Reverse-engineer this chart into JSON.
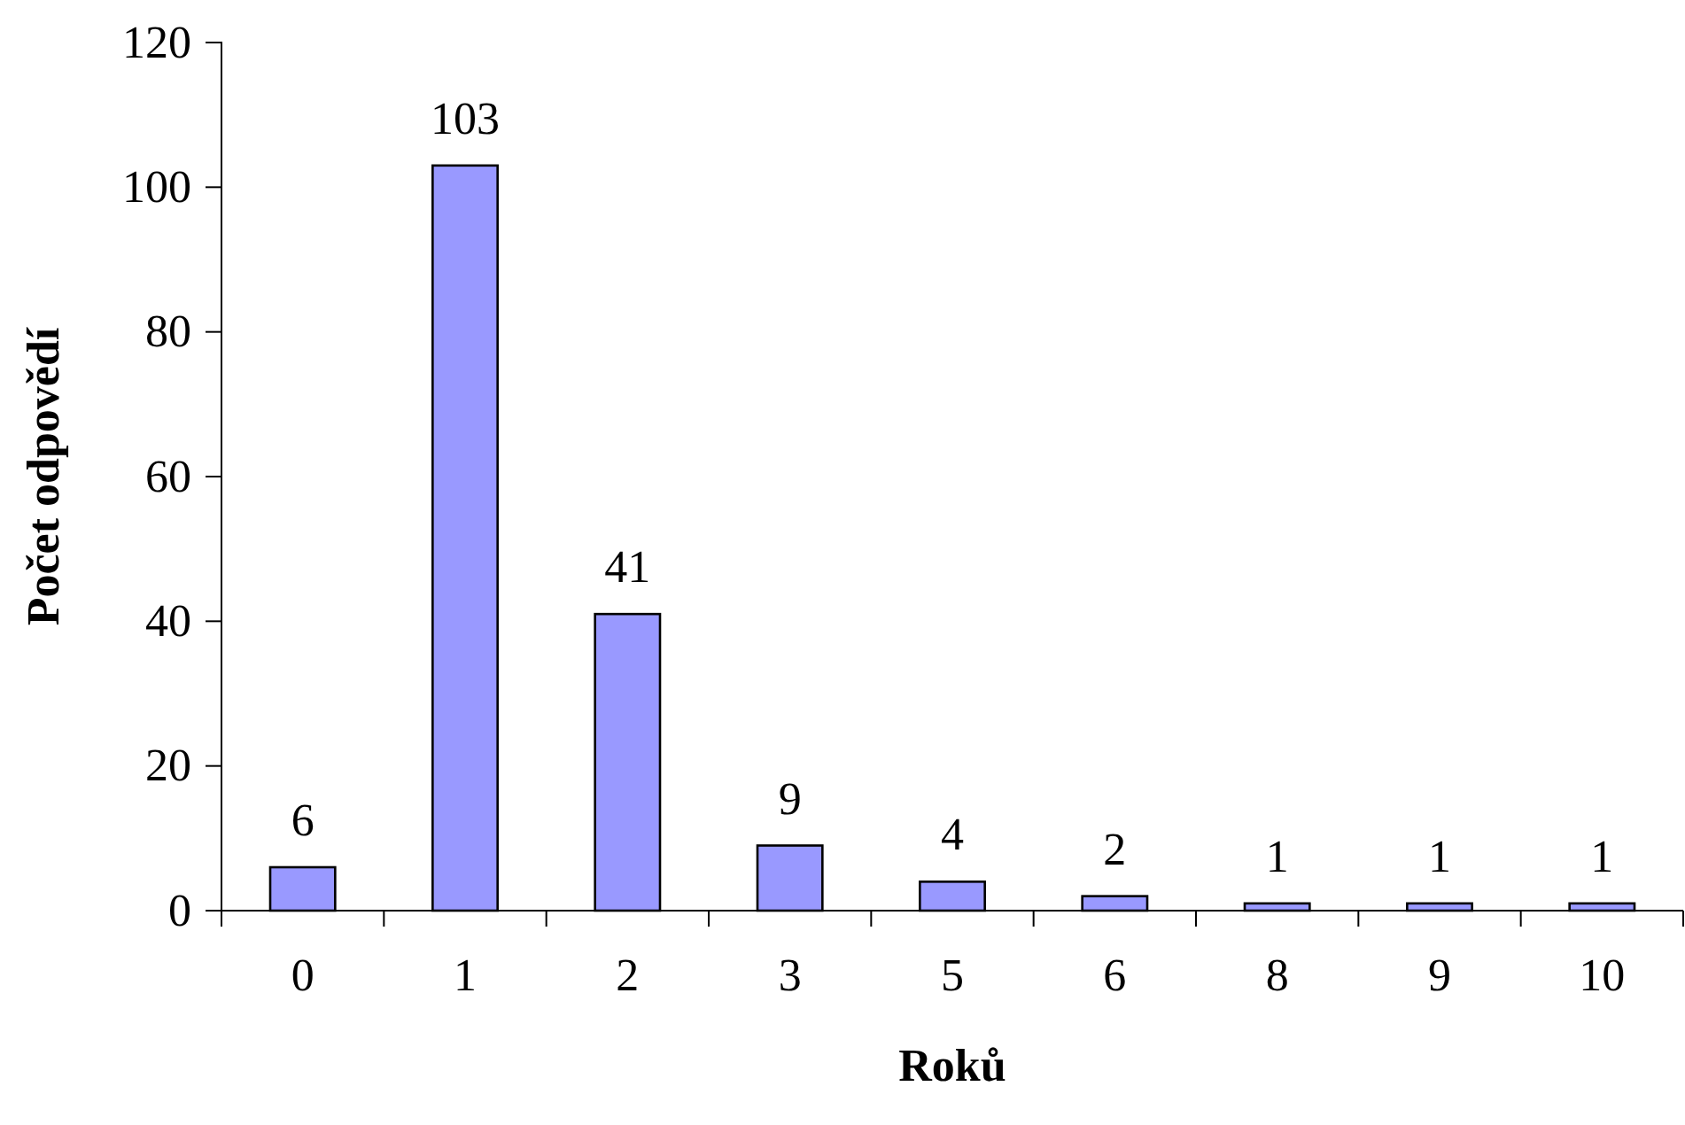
{
  "chart_data": {
    "type": "bar",
    "xlabel": "Roků",
    "ylabel": "Počet odpovědí",
    "categories": [
      "0",
      "1",
      "2",
      "3",
      "5",
      "6",
      "8",
      "9",
      "10"
    ],
    "values": [
      6,
      103,
      41,
      9,
      4,
      2,
      1,
      1,
      1
    ],
    "color": "#9999ff",
    "ylim": [
      0,
      120
    ],
    "yticks": [
      0,
      20,
      40,
      60,
      80,
      100,
      120
    ],
    "data_labels": true,
    "grid": false
  }
}
